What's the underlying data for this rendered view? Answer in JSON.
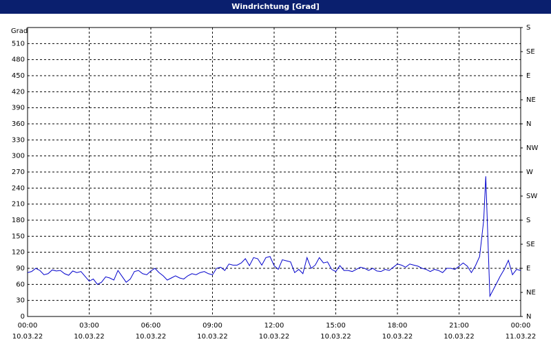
{
  "chart_data": {
    "type": "line",
    "title": "Windrichtung [Grad]",
    "ylabel": "Grad",
    "x": [
      0,
      0.2,
      0.4,
      0.6,
      0.8,
      1.0,
      1.2,
      1.4,
      1.6,
      1.8,
      2.0,
      2.2,
      2.4,
      2.6,
      2.8,
      3.0,
      3.2,
      3.4,
      3.6,
      3.8,
      4.0,
      4.2,
      4.4,
      4.6,
      4.8,
      5.0,
      5.2,
      5.4,
      5.6,
      5.8,
      6.0,
      6.2,
      6.4,
      6.6,
      6.8,
      7.0,
      7.2,
      7.4,
      7.6,
      7.8,
      8.0,
      8.2,
      8.4,
      8.6,
      8.8,
      9.0,
      9.2,
      9.4,
      9.6,
      9.8,
      10.0,
      10.2,
      10.4,
      10.6,
      10.8,
      11.0,
      11.2,
      11.4,
      11.6,
      11.8,
      12.0,
      12.2,
      12.4,
      12.6,
      12.8,
      13.0,
      13.2,
      13.4,
      13.6,
      13.8,
      14.0,
      14.2,
      14.4,
      14.6,
      14.8,
      15.0,
      15.2,
      15.4,
      15.6,
      15.8,
      16.0,
      16.2,
      16.4,
      16.6,
      16.8,
      17.0,
      17.2,
      17.4,
      17.6,
      17.8,
      18.0,
      18.2,
      18.4,
      18.6,
      18.8,
      19.0,
      19.2,
      19.4,
      19.6,
      19.8,
      20.0,
      20.2,
      20.4,
      20.6,
      20.8,
      21.0,
      21.2,
      21.4,
      21.6,
      21.8,
      22.0,
      22.2,
      22.3,
      22.5,
      22.8,
      23.0,
      23.2,
      23.4,
      23.6,
      23.8,
      24.0
    ],
    "series": [
      {
        "name": "Windrichtung",
        "color": "#0000cc",
        "values": [
          82,
          84,
          90,
          86,
          78,
          80,
          87,
          85,
          86,
          80,
          77,
          85,
          82,
          84,
          75,
          66,
          70,
          60,
          64,
          74,
          72,
          68,
          86,
          75,
          64,
          70,
          84,
          86,
          80,
          78,
          85,
          90,
          82,
          76,
          68,
          72,
          76,
          72,
          70,
          76,
          80,
          78,
          82,
          84,
          80,
          78,
          90,
          92,
          86,
          98,
          96,
          96,
          100,
          108,
          95,
          110,
          108,
          96,
          110,
          112,
          95,
          88,
          106,
          104,
          102,
          82,
          88,
          80,
          110,
          90,
          96,
          110,
          100,
          102,
          88,
          84,
          95,
          86,
          86,
          84,
          88,
          92,
          90,
          86,
          90,
          85,
          84,
          88,
          86,
          92,
          98,
          96,
          92,
          98,
          96,
          94,
          90,
          88,
          84,
          88,
          86,
          82,
          90,
          90,
          88,
          94,
          100,
          94,
          82,
          95,
          112,
          180,
          262,
          38,
          60,
          75,
          88,
          105,
          78,
          88,
          86
        ]
      }
    ],
    "xlim": [
      0,
      24
    ],
    "xticks": [
      {
        "value": 0,
        "label": "00:00"
      },
      {
        "value": 3,
        "label": "03:00"
      },
      {
        "value": 6,
        "label": "06:00"
      },
      {
        "value": 9,
        "label": "09:00"
      },
      {
        "value": 12,
        "label": "12:00"
      },
      {
        "value": 15,
        "label": "15:00"
      },
      {
        "value": 18,
        "label": "18:00"
      },
      {
        "value": 21,
        "label": "21:00"
      },
      {
        "value": 24,
        "label": "00:00"
      }
    ],
    "xtick_dates": [
      "10.03.22",
      "10.03.22",
      "10.03.22",
      "10.03.22",
      "10.03.22",
      "10.03.22",
      "10.03.22",
      "10.03.22",
      "11.03.22"
    ],
    "ylim": [
      0,
      540
    ],
    "yticks": [
      0,
      30,
      60,
      90,
      120,
      150,
      180,
      210,
      240,
      270,
      300,
      330,
      360,
      390,
      420,
      450,
      480,
      510
    ],
    "y2lim": [
      0,
      540
    ],
    "y2ticks": [
      {
        "value": 0,
        "label": "N"
      },
      {
        "value": 45,
        "label": "NE"
      },
      {
        "value": 90,
        "label": "E"
      },
      {
        "value": 135,
        "label": "SE"
      },
      {
        "value": 180,
        "label": "S"
      },
      {
        "value": 225,
        "label": "SW"
      },
      {
        "value": 270,
        "label": "W"
      },
      {
        "value": 315,
        "label": "NW"
      },
      {
        "value": 360,
        "label": "N"
      },
      {
        "value": 405,
        "label": "NE"
      },
      {
        "value": 450,
        "label": "E"
      },
      {
        "value": 495,
        "label": "SE"
      },
      {
        "value": 540,
        "label": "S"
      }
    ],
    "grid": true
  }
}
